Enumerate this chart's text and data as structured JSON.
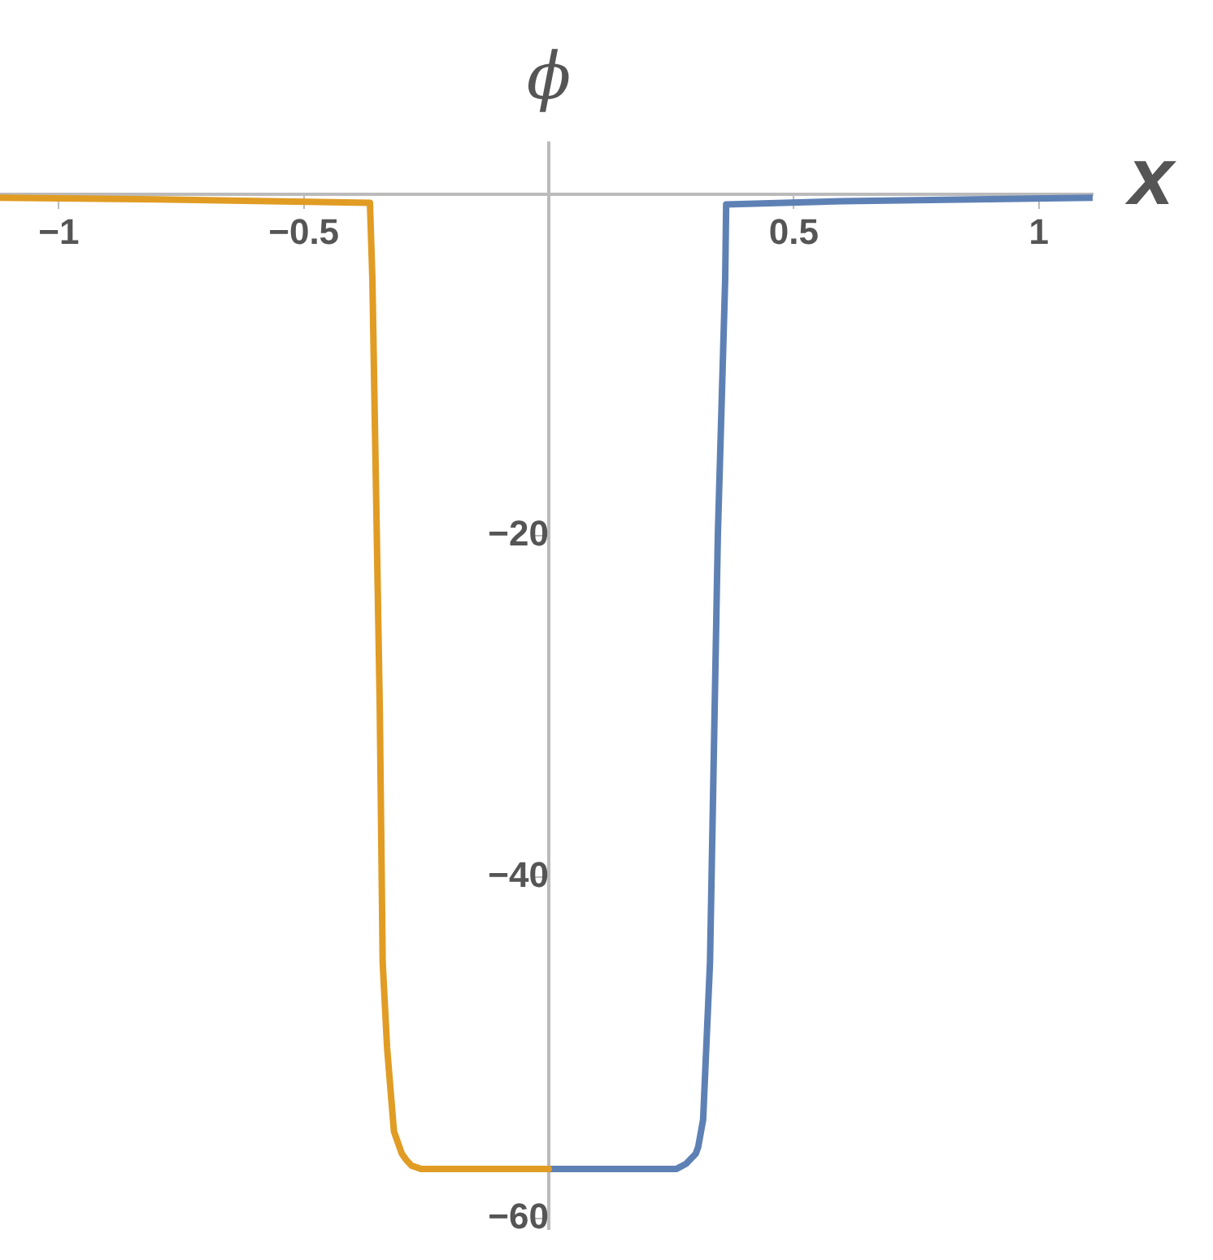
{
  "chart_data": {
    "type": "line",
    "xlabel": "x",
    "ylabel": "ϕ",
    "xlim": [
      -1.12,
      1.11
    ],
    "ylim": [
      -60.6,
      3
    ],
    "xticks": [
      -1,
      -0.5,
      0.5,
      1
    ],
    "yticks": [
      -20,
      -40,
      -60
    ],
    "grid": false,
    "legend": false,
    "marker": "none",
    "line_style": "solid",
    "series": [
      {
        "color": "#e19c24",
        "x": [
          -1.12,
          -0.8,
          -0.365,
          -0.36,
          -0.345,
          -0.339,
          -0.33,
          -0.316,
          -0.3,
          -0.29,
          -0.28,
          -0.26,
          -0.25,
          0
        ],
        "values": [
          -0.2,
          -0.3,
          -0.5,
          -5,
          -30,
          -45,
          -50,
          -54.9,
          -56.2,
          -56.6,
          -56.9,
          -57.1,
          -57.1,
          -57.1
        ]
      },
      {
        "color": "#5e81b5",
        "x": [
          0,
          0.25,
          0.26,
          0.28,
          0.3,
          0.305,
          0.315,
          0.329,
          0.345,
          0.36,
          0.362,
          0.6,
          1.11
        ],
        "values": [
          -57.1,
          -57.1,
          -57.1,
          -56.8,
          -56.2,
          -55.8,
          -54.2,
          -45,
          -20,
          -5,
          -0.6,
          -0.4,
          -0.2
        ]
      }
    ]
  }
}
